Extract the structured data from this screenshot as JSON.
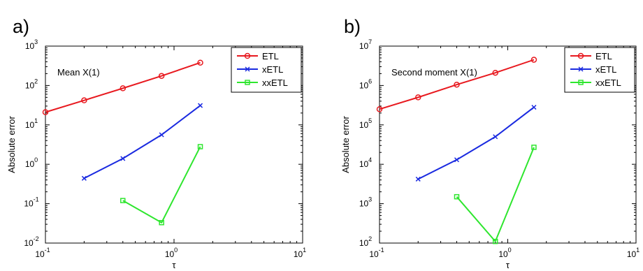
{
  "chart_data": [
    {
      "type": "line",
      "panel_label": "a)",
      "annotation": "Mean X(1)",
      "xlabel": "τ",
      "ylabel": "Absolute error",
      "xscale": "log",
      "yscale": "log",
      "xlim": [
        0.1,
        10
      ],
      "ylim": [
        0.01,
        1000
      ],
      "x_ticks": [
        {
          "base": "10",
          "exp": "-1"
        },
        {
          "base": "10",
          "exp": "0"
        },
        {
          "base": "10",
          "exp": "1"
        }
      ],
      "y_ticks": [
        {
          "base": "10",
          "exp": "-2"
        },
        {
          "base": "10",
          "exp": "-1"
        },
        {
          "base": "10",
          "exp": "0"
        },
        {
          "base": "10",
          "exp": "1"
        },
        {
          "base": "10",
          "exp": "2"
        },
        {
          "base": "10",
          "exp": "3"
        }
      ],
      "legend_position": "top-right",
      "grid": false,
      "series": [
        {
          "name": "ETL",
          "color": "#e8191f",
          "marker": "circle",
          "x": [
            0.1,
            0.2,
            0.4,
            0.8,
            1.6
          ],
          "y": [
            21,
            42,
            85,
            175,
            380
          ]
        },
        {
          "name": "xETL",
          "color": "#1a2ae0",
          "marker": "x",
          "x": [
            0.2,
            0.4,
            0.8,
            1.6
          ],
          "y": [
            0.44,
            1.4,
            5.6,
            31
          ]
        },
        {
          "name": "xxETL",
          "color": "#2ee62e",
          "marker": "square",
          "x": [
            0.4,
            0.8,
            1.6
          ],
          "y": [
            0.12,
            0.033,
            2.8
          ]
        }
      ]
    },
    {
      "type": "line",
      "panel_label": "b)",
      "annotation": "Second moment X(1)",
      "xlabel": "τ",
      "ylabel": "Absolute error",
      "xscale": "log",
      "yscale": "log",
      "xlim": [
        0.1,
        10
      ],
      "ylim": [
        100,
        10000000
      ],
      "x_ticks": [
        {
          "base": "10",
          "exp": "-1"
        },
        {
          "base": "10",
          "exp": "0"
        },
        {
          "base": "10",
          "exp": "1"
        }
      ],
      "y_ticks": [
        {
          "base": "10",
          "exp": "2"
        },
        {
          "base": "10",
          "exp": "3"
        },
        {
          "base": "10",
          "exp": "4"
        },
        {
          "base": "10",
          "exp": "5"
        },
        {
          "base": "10",
          "exp": "6"
        },
        {
          "base": "10",
          "exp": "7"
        }
      ],
      "legend_position": "top-right",
      "grid": false,
      "series": [
        {
          "name": "ETL",
          "color": "#e8191f",
          "marker": "circle",
          "x": [
            0.1,
            0.2,
            0.4,
            0.8,
            1.6
          ],
          "y": [
            250000,
            500000,
            1050000,
            2100000,
            4500000
          ]
        },
        {
          "name": "xETL",
          "color": "#1a2ae0",
          "marker": "x",
          "x": [
            0.2,
            0.4,
            0.8,
            1.6
          ],
          "y": [
            4200,
            13000,
            50000,
            280000
          ]
        },
        {
          "name": "xxETL",
          "color": "#2ee62e",
          "marker": "square",
          "x": [
            0.4,
            0.8,
            1.6
          ],
          "y": [
            1500,
            110,
            27000
          ]
        }
      ]
    }
  ]
}
